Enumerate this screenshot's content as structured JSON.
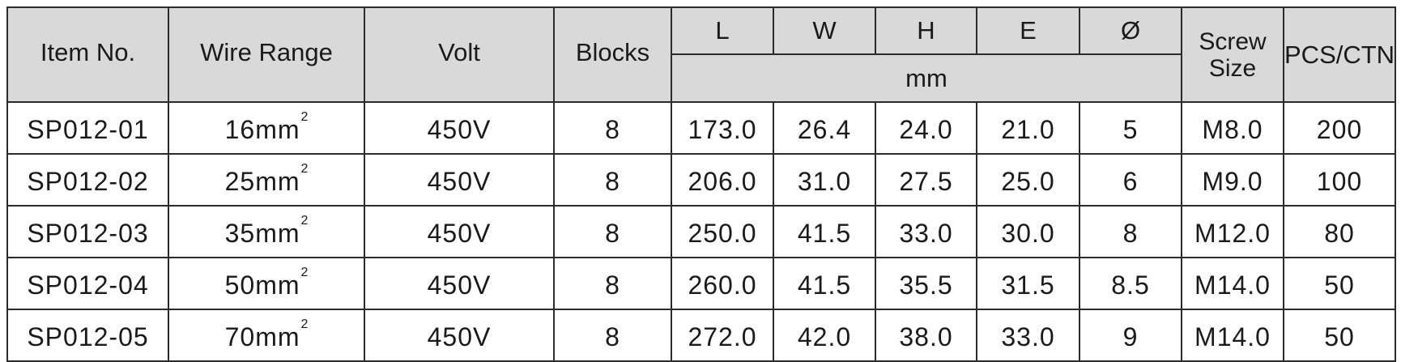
{
  "table": {
    "headers": {
      "item_no": "Item No.",
      "wire_range": "Wire Range",
      "volt": "Volt",
      "blocks": "Blocks",
      "dims": [
        "L",
        "W",
        "H",
        "E",
        "Ø"
      ],
      "dims_unit": "mm",
      "screw_size_line1": "Screw",
      "screw_size_line2": "Size",
      "pcs_ctn": "PCS/CTN"
    },
    "rows": [
      {
        "item": "SP012-01",
        "wire": "16mm",
        "wire_sup": "2",
        "volt": "450V",
        "blocks": "8",
        "L": "173.0",
        "W": "26.4",
        "H": "24.0",
        "E": "21.0",
        "D": "5",
        "screw": "M8.0",
        "pcs": "200"
      },
      {
        "item": "SP012-02",
        "wire": "25mm",
        "wire_sup": "2",
        "volt": "450V",
        "blocks": "8",
        "L": "206.0",
        "W": "31.0",
        "H": "27.5",
        "E": "25.0",
        "D": "6",
        "screw": "M9.0",
        "pcs": "100"
      },
      {
        "item": "SP012-03",
        "wire": "35mm",
        "wire_sup": "2",
        "volt": "450V",
        "blocks": "8",
        "L": "250.0",
        "W": "41.5",
        "H": "33.0",
        "E": "30.0",
        "D": "8",
        "screw": "M12.0",
        "pcs": "80"
      },
      {
        "item": "SP012-04",
        "wire": "50mm",
        "wire_sup": "2",
        "volt": "450V",
        "blocks": "8",
        "L": "260.0",
        "W": "41.5",
        "H": "35.5",
        "E": "31.5",
        "D": "8.5",
        "screw": "M14.0",
        "pcs": "50"
      },
      {
        "item": "SP012-05",
        "wire": "70mm",
        "wire_sup": "2",
        "volt": "450V",
        "blocks": "8",
        "L": "272.0",
        "W": "42.0",
        "H": "38.0",
        "E": "33.0",
        "D": "9",
        "screw": "M14.0",
        "pcs": "50"
      }
    ]
  }
}
